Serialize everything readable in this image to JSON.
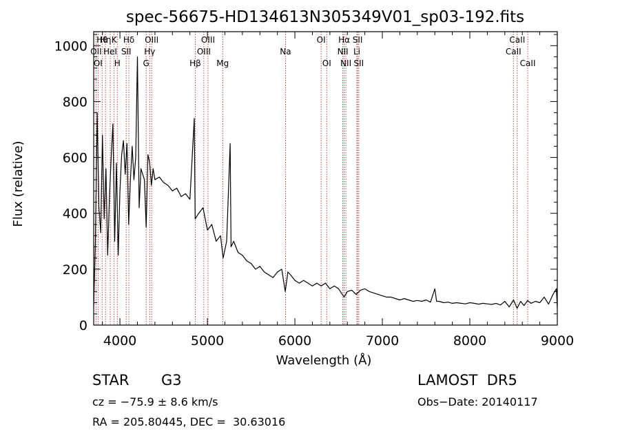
{
  "chart_data": {
    "type": "line",
    "title": "spec-56675-HD134613N305349V01_sp03-192.fits",
    "xlabel": "Wavelength (Å)",
    "ylabel": "Flux (relative)",
    "xlim": [
      3700,
      9000
    ],
    "ylim": [
      0,
      1050
    ],
    "xticks": [
      4000,
      5000,
      6000,
      7000,
      8000,
      9000
    ],
    "yticks": [
      0,
      200,
      400,
      600,
      800,
      1000
    ],
    "grid": false,
    "series": [
      {
        "values": [
          [
            3700,
            70
          ],
          [
            3720,
            300
          ],
          [
            3740,
            760
          ],
          [
            3760,
            420
          ],
          [
            3780,
            330
          ],
          [
            3800,
            680
          ],
          [
            3820,
            380
          ],
          [
            3840,
            560
          ],
          [
            3860,
            250
          ],
          [
            3880,
            460
          ],
          [
            3900,
            600
          ],
          [
            3920,
            720
          ],
          [
            3940,
            300
          ],
          [
            3960,
            580
          ],
          [
            3980,
            250
          ],
          [
            4000,
            480
          ],
          [
            4020,
            610
          ],
          [
            4040,
            660
          ],
          [
            4060,
            540
          ],
          [
            4080,
            650
          ],
          [
            4100,
            360
          ],
          [
            4120,
            520
          ],
          [
            4140,
            640
          ],
          [
            4160,
            520
          ],
          [
            4180,
            600
          ],
          [
            4200,
            960
          ],
          [
            4220,
            420
          ],
          [
            4240,
            560
          ],
          [
            4260,
            540
          ],
          [
            4280,
            520
          ],
          [
            4300,
            350
          ],
          [
            4320,
            610
          ],
          [
            4340,
            580
          ],
          [
            4360,
            500
          ],
          [
            4380,
            560
          ],
          [
            4400,
            520
          ],
          [
            4450,
            530
          ],
          [
            4500,
            510
          ],
          [
            4550,
            500
          ],
          [
            4600,
            480
          ],
          [
            4650,
            490
          ],
          [
            4700,
            460
          ],
          [
            4750,
            470
          ],
          [
            4800,
            450
          ],
          [
            4850,
            740
          ],
          [
            4860,
            380
          ],
          [
            4900,
            400
          ],
          [
            4950,
            420
          ],
          [
            5000,
            340
          ],
          [
            5050,
            360
          ],
          [
            5100,
            300
          ],
          [
            5150,
            320
          ],
          [
            5180,
            240
          ],
          [
            5220,
            300
          ],
          [
            5260,
            650
          ],
          [
            5270,
            280
          ],
          [
            5300,
            300
          ],
          [
            5350,
            260
          ],
          [
            5400,
            250
          ],
          [
            5450,
            230
          ],
          [
            5500,
            220
          ],
          [
            5550,
            200
          ],
          [
            5600,
            210
          ],
          [
            5650,
            190
          ],
          [
            5700,
            180
          ],
          [
            5750,
            170
          ],
          [
            5800,
            190
          ],
          [
            5850,
            200
          ],
          [
            5890,
            120
          ],
          [
            5920,
            190
          ],
          [
            5950,
            180
          ],
          [
            6000,
            160
          ],
          [
            6050,
            150
          ],
          [
            6100,
            160
          ],
          [
            6150,
            150
          ],
          [
            6200,
            140
          ],
          [
            6250,
            150
          ],
          [
            6300,
            140
          ],
          [
            6350,
            150
          ],
          [
            6400,
            130
          ],
          [
            6450,
            140
          ],
          [
            6500,
            130
          ],
          [
            6563,
            100
          ],
          [
            6600,
            120
          ],
          [
            6650,
            125
          ],
          [
            6700,
            110
          ],
          [
            6750,
            125
          ],
          [
            6800,
            130
          ],
          [
            6850,
            120
          ],
          [
            6900,
            115
          ],
          [
            6950,
            110
          ],
          [
            7000,
            105
          ],
          [
            7050,
            100
          ],
          [
            7100,
            100
          ],
          [
            7150,
            95
          ],
          [
            7200,
            90
          ],
          [
            7250,
            95
          ],
          [
            7300,
            90
          ],
          [
            7350,
            85
          ],
          [
            7400,
            88
          ],
          [
            7450,
            85
          ],
          [
            7500,
            90
          ],
          [
            7550,
            82
          ],
          [
            7600,
            130
          ],
          [
            7620,
            85
          ],
          [
            7650,
            85
          ],
          [
            7700,
            80
          ],
          [
            7750,
            82
          ],
          [
            7800,
            78
          ],
          [
            7850,
            80
          ],
          [
            7900,
            78
          ],
          [
            7950,
            76
          ],
          [
            8000,
            80
          ],
          [
            8050,
            78
          ],
          [
            8100,
            75
          ],
          [
            8150,
            78
          ],
          [
            8200,
            76
          ],
          [
            8250,
            74
          ],
          [
            8300,
            78
          ],
          [
            8350,
            72
          ],
          [
            8400,
            85
          ],
          [
            8450,
            65
          ],
          [
            8500,
            90
          ],
          [
            8540,
            60
          ],
          [
            8580,
            85
          ],
          [
            8620,
            70
          ],
          [
            8660,
            88
          ],
          [
            8700,
            78
          ],
          [
            8750,
            85
          ],
          [
            8800,
            80
          ],
          [
            8850,
            100
          ],
          [
            8900,
            75
          ],
          [
            8950,
            110
          ],
          [
            8990,
            130
          ],
          [
            9000,
            60
          ]
        ]
      }
    ],
    "lines": [
      {
        "wl": 3727,
        "row": 1,
        "text": "OII"
      },
      {
        "wl": 3750,
        "row": 2,
        "text": "OI"
      },
      {
        "wl": 3797,
        "row": 0,
        "text": "Hθ"
      },
      {
        "wl": 3835,
        "row": 0,
        "text": "Hη"
      },
      {
        "wl": 3889,
        "row": 1,
        "text": "HeI"
      },
      {
        "wl": 3934,
        "row": 0,
        "text": "K"
      },
      {
        "wl": 3970,
        "row": 2,
        "text": "H"
      },
      {
        "wl": 4072,
        "row": 1,
        "text": "SII"
      },
      {
        "wl": 4102,
        "row": 0,
        "text": "Hδ"
      },
      {
        "wl": 4300,
        "row": 2,
        "text": "G"
      },
      {
        "wl": 4340,
        "row": 1,
        "text": "Hγ"
      },
      {
        "wl": 4363,
        "row": 0,
        "text": "OIII"
      },
      {
        "wl": 4861,
        "row": 2,
        "text": "Hβ"
      },
      {
        "wl": 4959,
        "row": 1,
        "text": "OIII"
      },
      {
        "wl": 5007,
        "row": 0,
        "text": "OIII"
      },
      {
        "wl": 5175,
        "row": 2,
        "text": "Mg"
      },
      {
        "wl": 5893,
        "row": 1,
        "text": "Na"
      },
      {
        "wl": 6300,
        "row": 0,
        "text": "OI"
      },
      {
        "wl": 6364,
        "row": 2,
        "text": "OI"
      },
      {
        "wl": 6548,
        "row": 1,
        "text": "NII"
      },
      {
        "wl": 6563,
        "row": 0,
        "text": "Hα"
      },
      {
        "wl": 6583,
        "row": 2,
        "text": "NII"
      },
      {
        "wl": 6708,
        "row": 1,
        "text": "Li"
      },
      {
        "wl": 6717,
        "row": 0,
        "text": "SII"
      },
      {
        "wl": 6731,
        "row": 2,
        "text": "SII"
      },
      {
        "wl": 8498,
        "row": 1,
        "text": "CaII"
      },
      {
        "wl": 8542,
        "row": 0,
        "text": "CaII"
      },
      {
        "wl": 8662,
        "row": 2,
        "text": "CaII"
      }
    ]
  },
  "info": {
    "class": "STAR",
    "subclass": "G3",
    "survey": "LAMOST  DR5",
    "cz": "cz = −75.9 ± 8.6 km/s",
    "obs_date": "Obs−Date: 20140117",
    "coords": "RA = 205.80445, DEC =  30.63016"
  },
  "colors": {
    "spectrum": "#000000",
    "line_markers": "#b03030"
  }
}
